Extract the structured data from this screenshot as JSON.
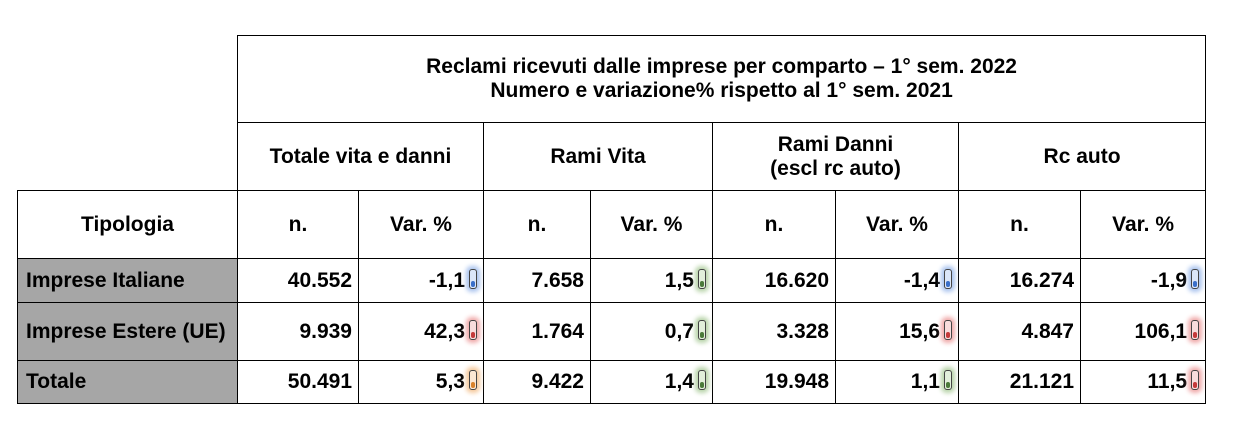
{
  "title": [
    "Reclami ricevuti dalle imprese per comparto – 1° sem. 2022",
    "Numero e variazione% rispetto al 1° sem. 2021"
  ],
  "groups": [
    [
      "Totale vita e danni"
    ],
    [
      "Rami Vita"
    ],
    [
      "Rami Danni",
      "(escl rc auto)"
    ],
    [
      "Rc auto"
    ]
  ],
  "columns": [
    "Tipologia",
    "n.",
    "Var. %",
    "n.",
    "Var. %",
    "n.",
    "Var. %",
    "n.",
    "Var. %"
  ],
  "rows": [
    [
      "Imprese Italiane",
      "40.552",
      "-1,1",
      "7.658",
      "1,5",
      "16.620",
      "-1,4",
      "16.274",
      "-1,9"
    ],
    [
      "Imprese Estere (UE)",
      "9.939",
      "42,3",
      "1.764",
      "0,7",
      "3.328",
      "15,6",
      "4.847",
      "106,1"
    ],
    [
      "Totale",
      "50.491",
      "5,3",
      "9.422",
      "1,4",
      "19.948",
      "1,1",
      "21.121",
      "11,5"
    ]
  ]
}
